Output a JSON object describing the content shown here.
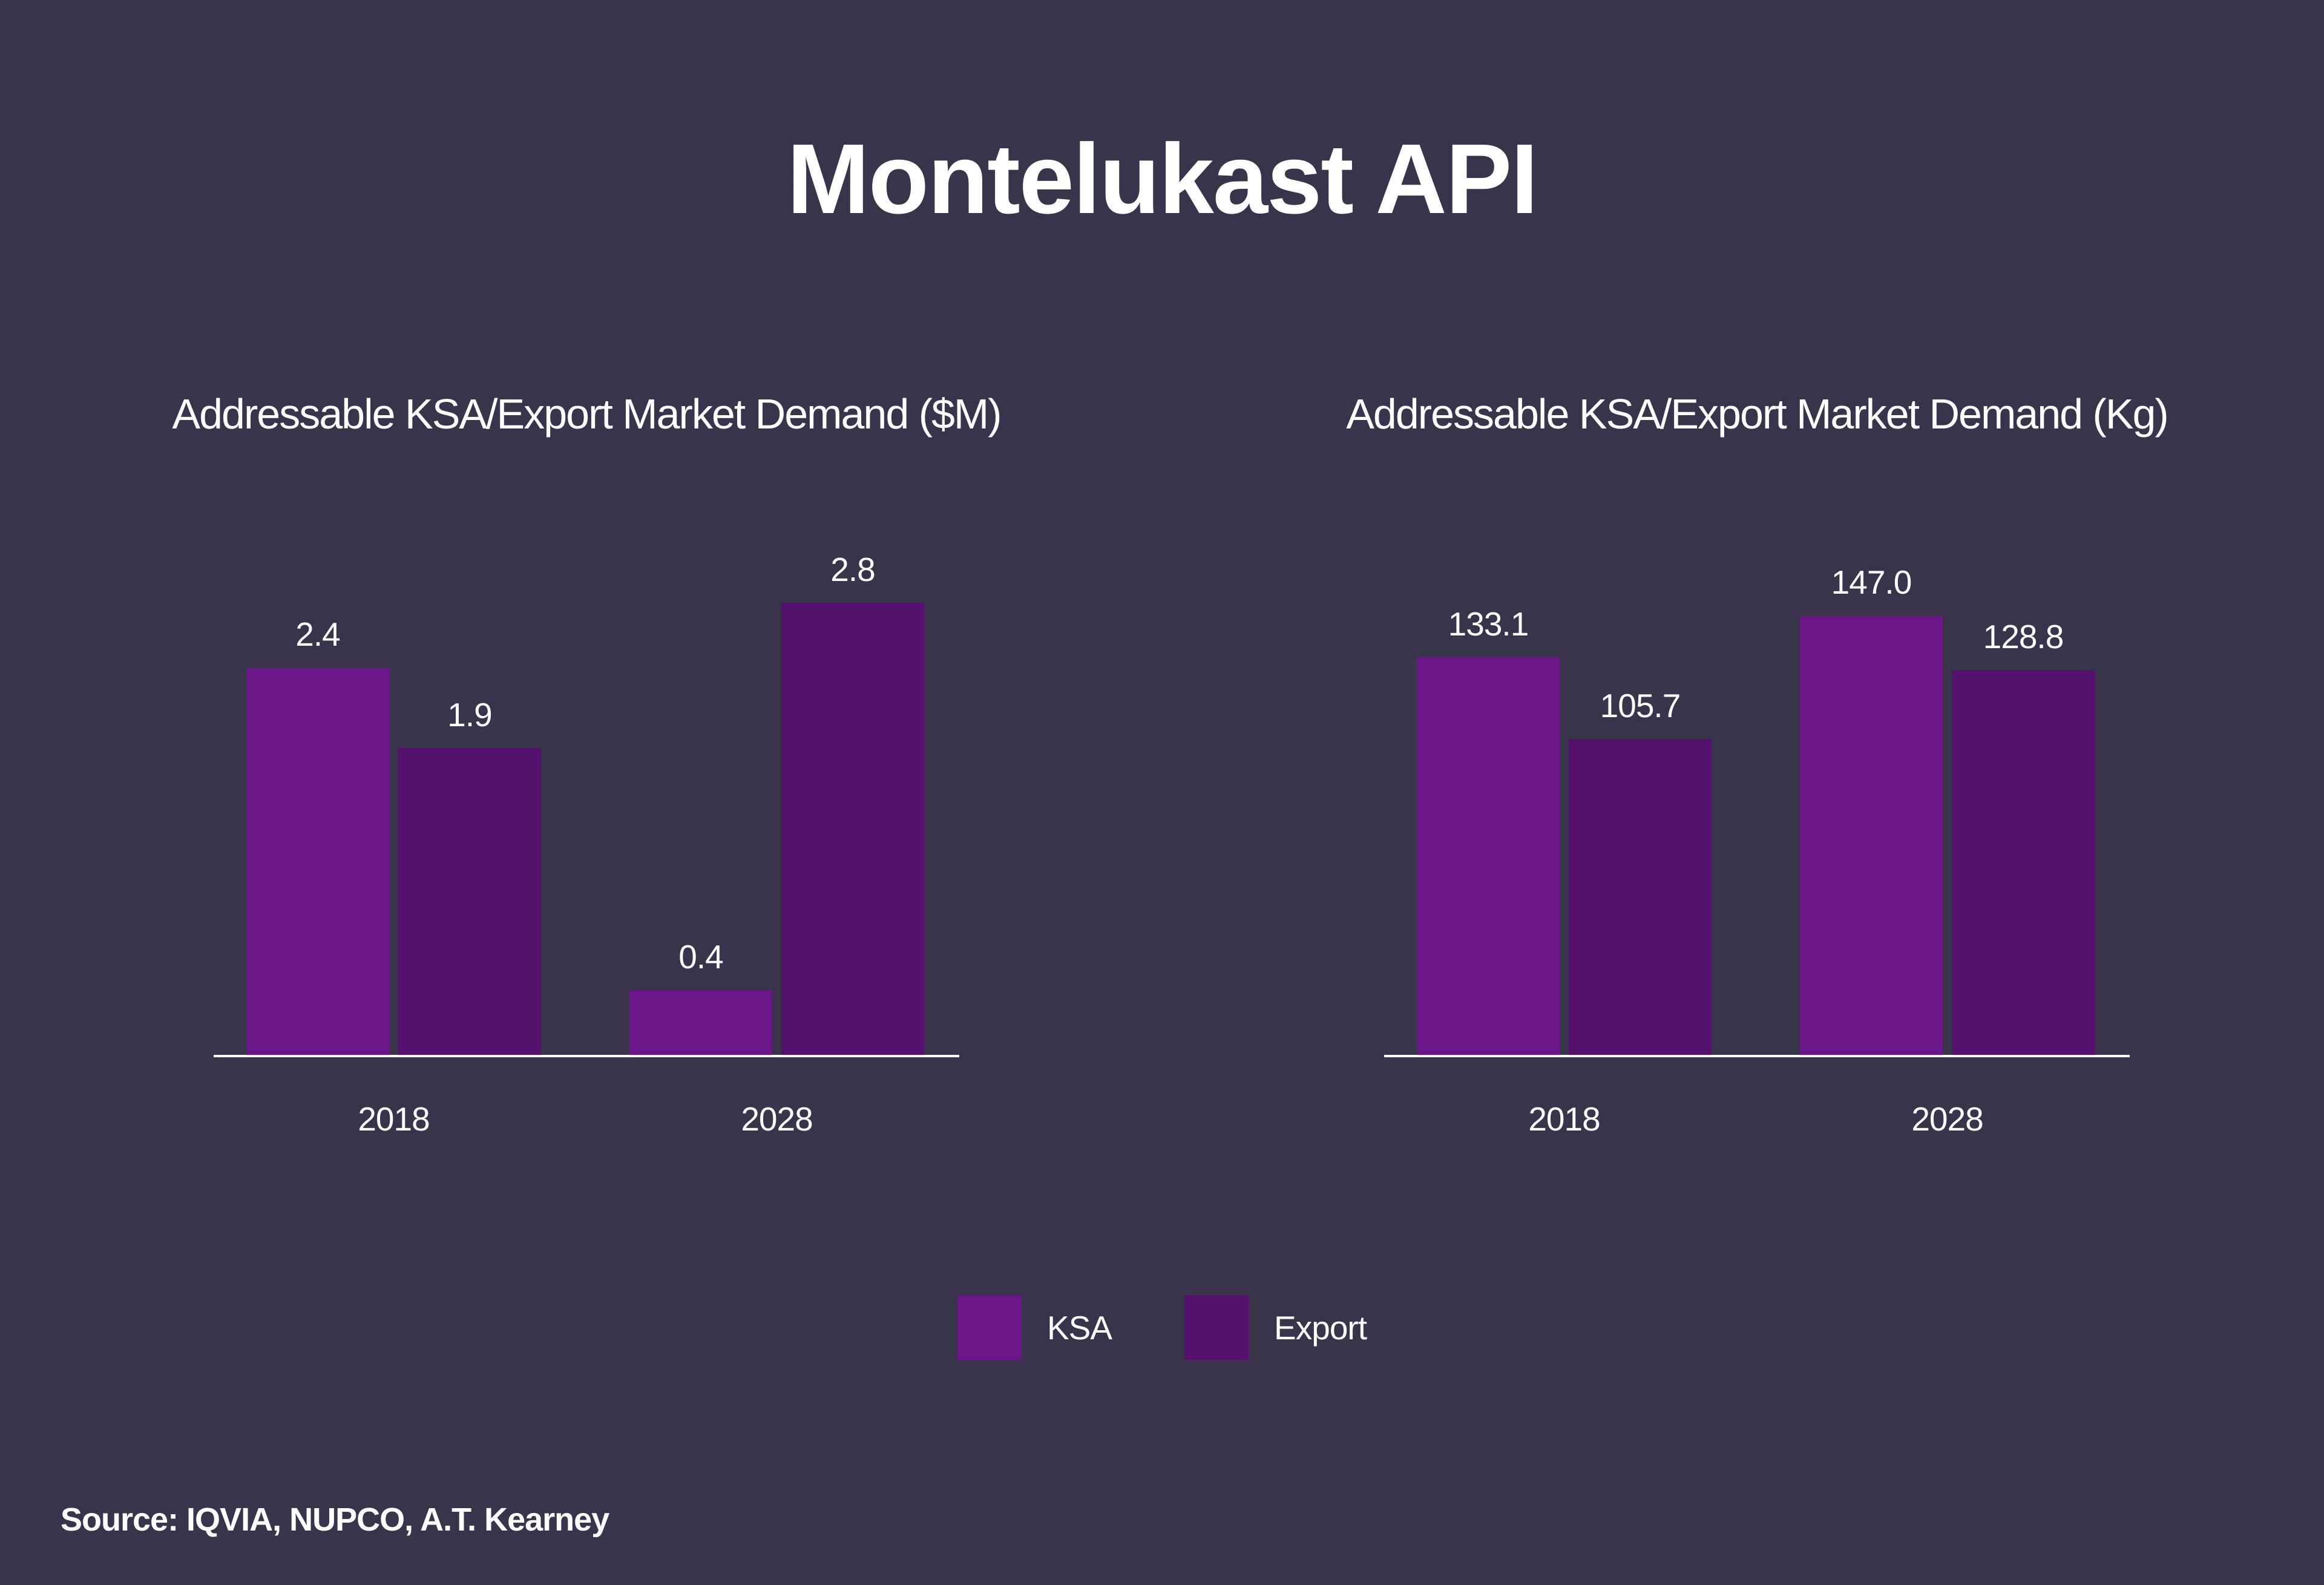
{
  "page": {
    "title": "Montelukast API",
    "source": "Source: IQVIA, NUPCO, A.T. Kearney",
    "background_color": "#39344C",
    "text_color": "#FFFFFF",
    "axis_color": "#FFFFFF"
  },
  "legend": {
    "position": "bottom-center",
    "items": [
      {
        "label": "KSA",
        "color": "#6B1789"
      },
      {
        "label": "Export",
        "color": "#56116E"
      }
    ]
  },
  "chart_data": [
    {
      "type": "bar",
      "title": "Addressable KSA/Export Market Demand ($M)",
      "unit": "$M",
      "categories": [
        "2018",
        "2028"
      ],
      "series": [
        {
          "name": "KSA",
          "color": "#6B1789",
          "values": [
            2.4,
            0.4
          ]
        },
        {
          "name": "Export",
          "color": "#56116E",
          "values": [
            1.9,
            2.8
          ]
        }
      ],
      "value_label_decimals": 1,
      "xlabel": "",
      "ylabel": "",
      "ylim": [
        0,
        3.0
      ],
      "grid": false,
      "y_axis_visible": false,
      "legend_position": "shared-bottom-center"
    },
    {
      "type": "bar",
      "title": "Addressable KSA/Export Market Demand (Kg)",
      "unit": "Kg",
      "categories": [
        "2018",
        "2028"
      ],
      "series": [
        {
          "name": "KSA",
          "color": "#6B1789",
          "values": [
            133.1,
            147.0
          ]
        },
        {
          "name": "Export",
          "color": "#56116E",
          "values": [
            105.7,
            128.8
          ]
        }
      ],
      "value_label_decimals": 1,
      "xlabel": "",
      "ylabel": "",
      "ylim": [
        0,
        162
      ],
      "grid": false,
      "y_axis_visible": false,
      "legend_position": "shared-bottom-center"
    }
  ]
}
